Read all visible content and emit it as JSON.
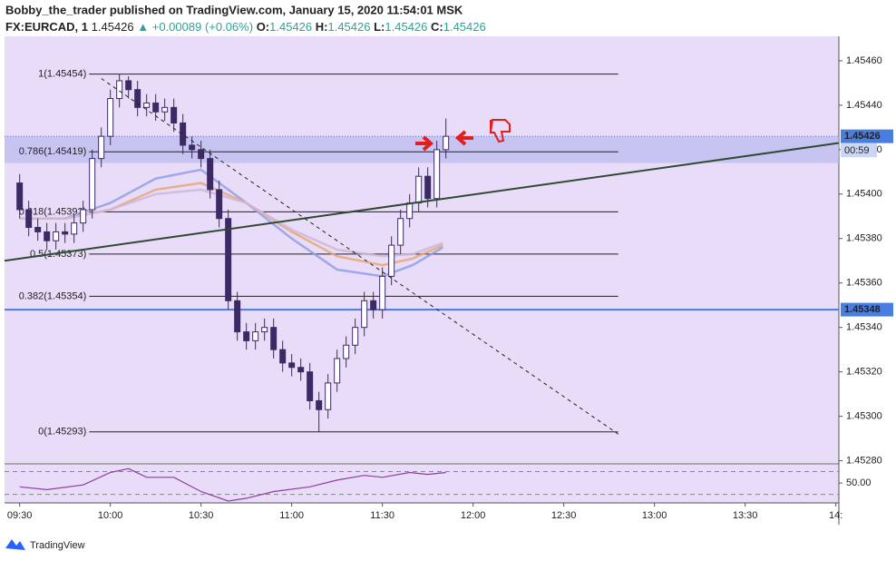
{
  "chart_data": {
    "type": "candlestick",
    "title": "Bobby_the_trader published on TradingView.com, January 15, 2020 11:54:01 MSK",
    "symbol": "FX:EURCAD, 1",
    "last": "1.45426",
    "change": "▲ +0.00089 (+0.06%)",
    "ohlc_legend": [
      {
        "label": "O:",
        "value": "1.45426"
      },
      {
        "label": "H:",
        "value": "1.45426"
      },
      {
        "label": "L:",
        "value": "1.45426"
      },
      {
        "label": "C:",
        "value": "1.45426"
      }
    ],
    "x": [
      "09:30",
      "09:33",
      "09:36",
      "09:39",
      "09:42",
      "09:45",
      "09:48",
      "09:51",
      "09:54",
      "09:57",
      "10:00",
      "10:03",
      "10:06",
      "10:09",
      "10:12",
      "10:15",
      "10:18",
      "10:21",
      "10:24",
      "10:27",
      "10:30",
      "10:33",
      "10:36",
      "10:39",
      "10:42",
      "10:45",
      "10:48",
      "10:51",
      "10:54",
      "10:57",
      "11:00",
      "11:03",
      "11:06",
      "11:09",
      "11:12",
      "11:15",
      "11:18",
      "11:21",
      "11:24",
      "11:27",
      "11:30",
      "11:33",
      "11:36",
      "11:39",
      "11:42",
      "11:45",
      "11:48",
      "11:51"
    ],
    "open": [
      1.45405,
      1.45393,
      1.45385,
      1.45383,
      1.45379,
      1.45383,
      1.45382,
      1.45387,
      1.45393,
      1.45416,
      1.45426,
      1.45443,
      1.45451,
      1.45447,
      1.45439,
      1.45441,
      1.45437,
      1.45439,
      1.45432,
      1.45422,
      1.4542,
      1.45416,
      1.45402,
      1.45389,
      1.45352,
      1.45338,
      1.45334,
      1.45338,
      1.4534,
      1.4533,
      1.45324,
      1.45322,
      1.4532,
      1.45307,
      1.45303,
      1.45315,
      1.45326,
      1.45332,
      1.4534,
      1.45352,
      1.45348,
      1.45363,
      1.45377,
      1.45389,
      1.45396,
      1.45408,
      1.45398,
      1.4542
    ],
    "high": [
      1.45409,
      1.45397,
      1.45389,
      1.45387,
      1.45387,
      1.45387,
      1.45391,
      1.45397,
      1.4542,
      1.4543,
      1.45447,
      1.45454,
      1.45453,
      1.45451,
      1.45445,
      1.45445,
      1.45443,
      1.45443,
      1.45436,
      1.45426,
      1.45424,
      1.4542,
      1.45406,
      1.45393,
      1.45356,
      1.45342,
      1.45342,
      1.45344,
      1.45344,
      1.45334,
      1.45328,
      1.45326,
      1.45324,
      1.45311,
      1.45319,
      1.4533,
      1.45336,
      1.45344,
      1.45356,
      1.45356,
      1.45367,
      1.45381,
      1.45393,
      1.454,
      1.45412,
      1.45412,
      1.45424,
      1.45434
    ],
    "low": [
      1.45389,
      1.45381,
      1.45379,
      1.45375,
      1.45375,
      1.45378,
      1.45378,
      1.45383,
      1.45389,
      1.45412,
      1.45422,
      1.45439,
      1.45443,
      1.45435,
      1.45435,
      1.45433,
      1.45433,
      1.45428,
      1.45418,
      1.45416,
      1.45412,
      1.45398,
      1.45385,
      1.45348,
      1.45334,
      1.4533,
      1.4533,
      1.45334,
      1.45326,
      1.4532,
      1.45318,
      1.45316,
      1.45303,
      1.45293,
      1.45299,
      1.45311,
      1.45322,
      1.45328,
      1.45336,
      1.45344,
      1.45344,
      1.45359,
      1.45373,
      1.45385,
      1.45392,
      1.45394,
      1.45394,
      1.45416
    ],
    "close": [
      1.45393,
      1.45385,
      1.45383,
      1.45379,
      1.45383,
      1.45382,
      1.45387,
      1.45393,
      1.45416,
      1.45426,
      1.45443,
      1.45451,
      1.45447,
      1.45439,
      1.45441,
      1.45437,
      1.45439,
      1.45432,
      1.45422,
      1.4542,
      1.45416,
      1.45402,
      1.45389,
      1.45352,
      1.45338,
      1.45334,
      1.45338,
      1.4534,
      1.4533,
      1.45324,
      1.45322,
      1.4532,
      1.45307,
      1.45303,
      1.45315,
      1.45326,
      1.45332,
      1.4534,
      1.45352,
      1.45348,
      1.45363,
      1.45377,
      1.45389,
      1.45396,
      1.45408,
      1.45398,
      1.4542,
      1.45426
    ],
    "up_color": "#ffffff",
    "down_color": "#3b2a63",
    "xlim": [
      "09:25",
      "14:01"
    ],
    "xticks": [
      "09:30",
      "10:00",
      "10:30",
      "11:00",
      "11:30",
      "12:00",
      "12:30",
      "13:00",
      "13:30",
      "14:"
    ],
    "ylim": [
      1.45279,
      1.45471
    ],
    "yticks": [
      {
        "value": 1.4528,
        "label": "1.45280"
      },
      {
        "value": 1.453,
        "label": "1.45300"
      },
      {
        "value": 1.4532,
        "label": "1.45320"
      },
      {
        "value": 1.4534,
        "label": "1.45340"
      },
      {
        "value": 1.4536,
        "label": "1.45360"
      },
      {
        "value": 1.4538,
        "label": "1.45380"
      },
      {
        "value": 1.454,
        "label": "1.45400"
      },
      {
        "value": 1.4542,
        "label": "1.45420"
      },
      {
        "value": 1.4544,
        "label": "1.45440"
      },
      {
        "value": 1.4546,
        "label": "1.45460"
      }
    ],
    "moving_averages": [
      {
        "color": "#8f9ee6",
        "x": [
          "09:30",
          "09:45",
          "10:00",
          "10:15",
          "10:30",
          "10:45",
          "11:00",
          "11:15",
          "11:30",
          "11:40",
          "11:50"
        ],
        "values": [
          1.45389,
          1.45389,
          1.45396,
          1.45407,
          1.45411,
          1.45396,
          1.4538,
          1.45366,
          1.45363,
          1.45368,
          1.45376
        ]
      },
      {
        "color": "#e8a877",
        "x": [
          "09:30",
          "09:45",
          "10:00",
          "10:15",
          "10:30",
          "10:45",
          "11:00",
          "11:15",
          "11:30",
          "11:40",
          "11:50"
        ],
        "values": [
          1.45389,
          1.45389,
          1.45393,
          1.45402,
          1.45405,
          1.45396,
          1.45383,
          1.45372,
          1.45368,
          1.45371,
          1.45377
        ]
      },
      {
        "color": "#cdb7d8",
        "x": [
          "09:30",
          "09:45",
          "10:00",
          "10:15",
          "10:30",
          "10:45",
          "11:00",
          "11:15",
          "11:30",
          "11:40",
          "11:50"
        ],
        "values": [
          1.45389,
          1.45389,
          1.45393,
          1.454,
          1.45402,
          1.45396,
          1.45384,
          1.45375,
          1.45372,
          1.45373,
          1.45378
        ]
      }
    ],
    "fib_x": [
      "09:53",
      "12:48"
    ],
    "fib_levels": [
      {
        "value": 1.45454,
        "label": "1(1.45454)"
      },
      {
        "value": 1.45419,
        "label": "0.786(1.45419)"
      },
      {
        "value": 1.45392,
        "label": "0.618(1.45392)"
      },
      {
        "value": 1.45373,
        "label": "0.5(1.45373)"
      },
      {
        "value": 1.45354,
        "label": "0.382(1.45354)"
      },
      {
        "value": 1.45293,
        "label": "0(1.45293)"
      }
    ],
    "trend_lines": [
      {
        "color": "#2f4a32",
        "dash": false,
        "x": [
          "09:25",
          "14:01"
        ],
        "values": [
          1.4537,
          1.45423
        ]
      },
      {
        "color": "#222222",
        "dash": true,
        "x": [
          "09:57",
          "12:48"
        ],
        "values": [
          1.45452,
          1.45292
        ]
      }
    ],
    "zone": [
      1.45414,
      1.45426
    ],
    "horizontal_line": {
      "value": 1.45348,
      "label": "1.45348",
      "color": "#4a7de0"
    },
    "last_price": {
      "value": 1.45426,
      "label": "1.45426",
      "countdown": "00:59"
    },
    "rsi": {
      "color": "#8b3fa0",
      "ylim": [
        15,
        82
      ],
      "bands": [
        30,
        70
      ],
      "yticks": [
        {
          "value": 50,
          "label": "50.00"
        }
      ],
      "x": [
        "09:30",
        "09:39",
        "09:51",
        "10:00",
        "10:06",
        "10:12",
        "10:21",
        "10:30",
        "10:39",
        "10:45",
        "10:54",
        "11:06",
        "11:15",
        "11:24",
        "11:30",
        "11:39",
        "11:45",
        "11:51"
      ],
      "values": [
        43.3,
        38.3,
        46.6,
        68.4,
        75.1,
        60,
        60,
        34.9,
        18.2,
        23.2,
        34.9,
        43.3,
        55,
        63.4,
        60,
        68.4,
        65.1,
        68.4
      ]
    }
  },
  "footer": {
    "brand": "TradingView"
  }
}
